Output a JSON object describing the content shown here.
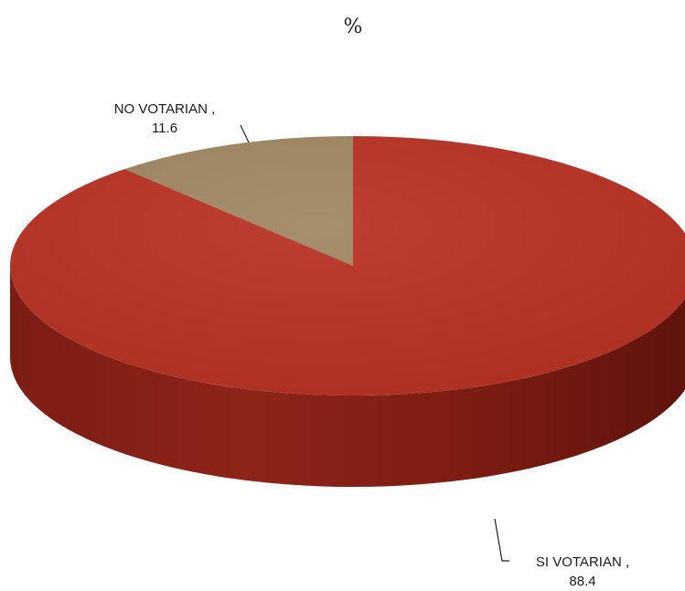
{
  "chart_data": {
    "type": "pie",
    "title": "%",
    "style": "3d",
    "slices": [
      {
        "label": "NO VOTARIAN ,",
        "value": 11.6,
        "value_text": "11.6",
        "color": "#a08762"
      },
      {
        "label": "SI VOTARIAN ,",
        "value": 88.4,
        "value_text": "88.4",
        "color": "#b83325"
      }
    ]
  }
}
